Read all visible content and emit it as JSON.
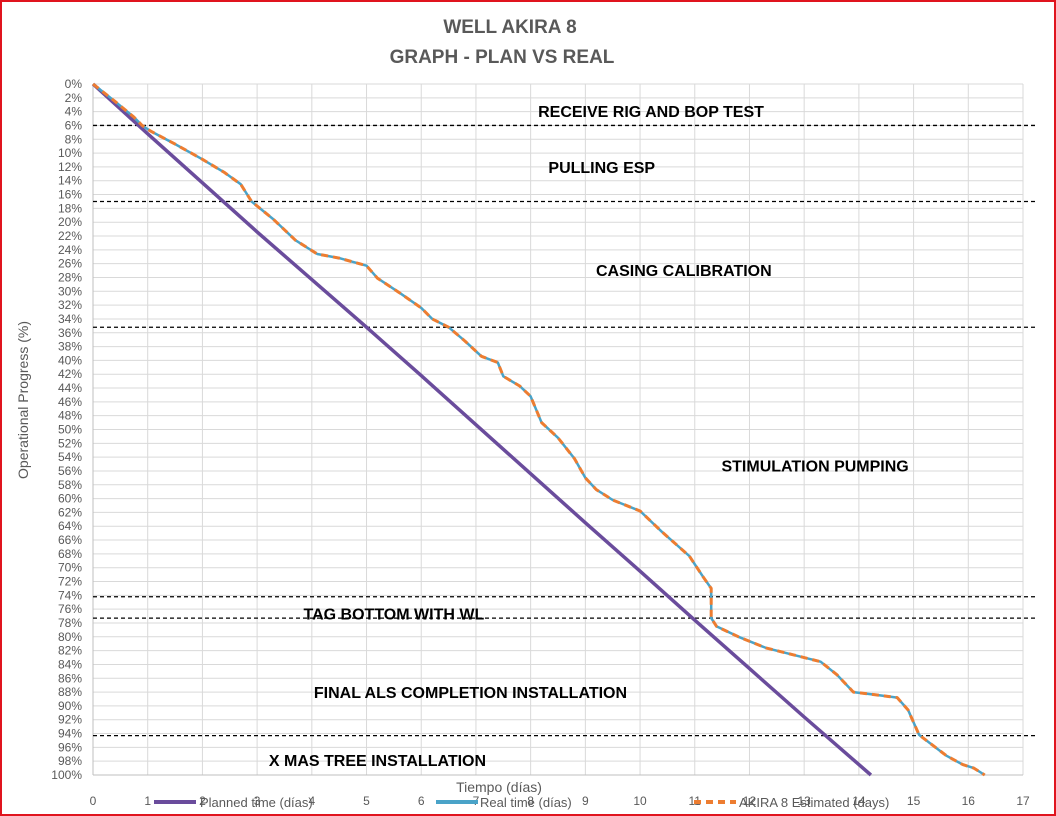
{
  "chart_data": {
    "type": "line",
    "title": "WELL AKIRA 8",
    "subtitle": "GRAPH  - PLAN VS REAL",
    "xlabel": "Tiempo (días)",
    "ylabel": "Operational Progress (%)",
    "xlim": [
      0,
      17
    ],
    "ylim": [
      0,
      100
    ],
    "y_inverted": true,
    "grid": true,
    "legend_position": "bottom",
    "x_ticks": [
      0,
      1,
      2,
      3,
      4,
      5,
      6,
      7,
      8,
      9,
      10,
      11,
      12,
      13,
      14,
      15,
      16,
      17
    ],
    "y_ticks": [
      0,
      2,
      4,
      6,
      8,
      10,
      12,
      14,
      16,
      18,
      20,
      22,
      24,
      26,
      28,
      30,
      32,
      34,
      36,
      38,
      40,
      42,
      44,
      46,
      48,
      50,
      52,
      54,
      56,
      58,
      60,
      62,
      64,
      66,
      68,
      70,
      72,
      74,
      76,
      78,
      80,
      82,
      84,
      86,
      88,
      90,
      92,
      94,
      96,
      98,
      100
    ],
    "y_tick_suffix": "%",
    "series": [
      {
        "name": "Planned time (días)",
        "color": "#6a4c9c",
        "style": "solid",
        "x": [
          0,
          1,
          2,
          3,
          4,
          5,
          6,
          7,
          8,
          9,
          10,
          11,
          12,
          13,
          14.22
        ],
        "y": [
          0,
          7.2,
          14.3,
          21.4,
          28.3,
          35.2,
          42.2,
          49.3,
          56.4,
          63.5,
          70.5,
          77.6,
          84.6,
          91.6,
          100
        ]
      },
      {
        "name": "Real time (días)",
        "color": "#4aa3c8",
        "style": "solid",
        "x": [
          0,
          0.4,
          0.75,
          0.9,
          1.05,
          1.5,
          2.0,
          2.4,
          2.7,
          2.9,
          3.3,
          3.7,
          4.1,
          4.5,
          5.0,
          5.2,
          5.6,
          6.0,
          6.2,
          6.5,
          6.8,
          7.1,
          7.4,
          7.5,
          7.8,
          8.0,
          8.2,
          8.5,
          8.8,
          9.0,
          9.2,
          9.5,
          10.0,
          10.4,
          10.9,
          11.15,
          11.3,
          11.3,
          11.4,
          11.8,
          12.3,
          12.8,
          13.3,
          13.6,
          13.9,
          14.3,
          14.7,
          14.9,
          15.1,
          15.6,
          15.9,
          16.1,
          16.3
        ],
        "y": [
          0,
          2.5,
          4.8,
          6.0,
          6.8,
          8.7,
          10.9,
          12.8,
          14.5,
          17.0,
          19.6,
          22.6,
          24.6,
          25.2,
          26.3,
          28.1,
          30.2,
          32.4,
          34.0,
          35.2,
          37.2,
          39.4,
          40.3,
          42.3,
          43.7,
          45.2,
          49.0,
          51.2,
          54.2,
          57.0,
          58.7,
          60.2,
          61.8,
          64.8,
          68.3,
          71.3,
          73.0,
          77.3,
          78.5,
          80.0,
          81.6,
          82.6,
          83.6,
          85.5,
          88.0,
          88.4,
          88.8,
          90.6,
          94.2,
          97.2,
          98.5,
          99.0,
          100
        ]
      },
      {
        "name": "AKIRA 8 Estimated (days)",
        "color": "#ed7d31",
        "style": "dashed",
        "x": [
          0,
          0.4,
          0.75,
          0.9,
          1.05,
          1.5,
          2.0,
          2.4,
          2.7,
          2.9,
          3.3,
          3.7,
          4.1,
          4.5,
          5.0,
          5.2,
          5.6,
          6.0,
          6.2,
          6.5,
          6.8,
          7.1,
          7.4,
          7.5,
          7.8,
          8.0,
          8.2,
          8.5,
          8.8,
          9.0,
          9.2,
          9.5,
          10.0,
          10.4,
          10.9,
          11.15,
          11.3,
          11.3,
          11.4,
          11.8,
          12.3,
          12.8,
          13.3,
          13.6,
          13.9,
          14.3,
          14.7,
          14.9,
          15.1,
          15.6,
          15.9,
          16.1,
          16.3
        ],
        "y": [
          0,
          2.5,
          4.8,
          6.0,
          6.8,
          8.7,
          10.9,
          12.8,
          14.5,
          17.0,
          19.6,
          22.6,
          24.6,
          25.2,
          26.3,
          28.1,
          30.2,
          32.4,
          34.0,
          35.2,
          37.2,
          39.4,
          40.3,
          42.3,
          43.7,
          45.2,
          49.0,
          51.2,
          54.2,
          57.0,
          58.7,
          60.2,
          61.8,
          64.8,
          68.3,
          71.3,
          73.0,
          77.3,
          78.5,
          80.0,
          81.6,
          82.6,
          83.6,
          85.5,
          88.0,
          88.4,
          88.8,
          90.6,
          94.2,
          97.2,
          98.5,
          99.0,
          100
        ]
      }
    ],
    "phase_boundaries": [
      6,
      17,
      35.2,
      74.2,
      77.3,
      94.3
    ],
    "phases": [
      {
        "label": "RECEIVE RIG AND BOP TEST",
        "x": 10.2,
        "y": 3.9
      },
      {
        "label": "PULLING ESP",
        "x": 9.3,
        "y": 12.0
      },
      {
        "label": "CASING CALIBRATION",
        "x": 10.8,
        "y": 26.9
      },
      {
        "label": "STIMULATION PUMPING",
        "x": 13.2,
        "y": 55.2
      },
      {
        "label": "TAG BOTTOM WITH WL",
        "x": 5.5,
        "y": 76.6
      },
      {
        "label": "FINAL ALS COMPLETION INSTALLATION",
        "x": 6.9,
        "y": 88.0
      },
      {
        "label": "X MAS TREE INSTALLATION",
        "x": 5.2,
        "y": 97.8
      }
    ]
  }
}
